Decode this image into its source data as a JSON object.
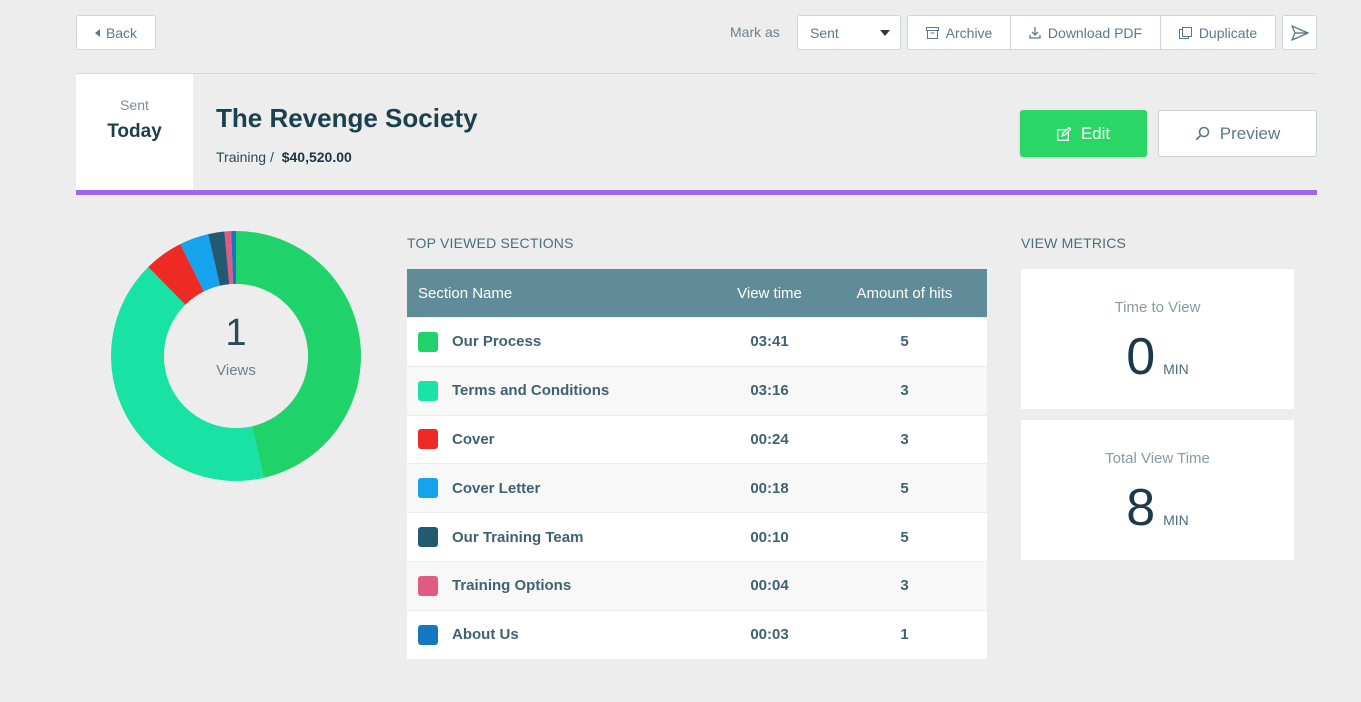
{
  "toolbar": {
    "back_label": "Back",
    "mark_as_label": "Mark as",
    "status_value": "Sent",
    "archive_label": "Archive",
    "download_label": "Download PDF",
    "duplicate_label": "Duplicate"
  },
  "header": {
    "sent_label": "Sent",
    "sent_value": "Today",
    "title": "The Revenge Society",
    "category": "Training /",
    "amount": "$40,520.00",
    "edit_label": "Edit",
    "preview_label": "Preview",
    "accent_color": "#a066ea"
  },
  "views": {
    "count": "1",
    "label": "Views"
  },
  "sections": {
    "title": "TOP VIEWED SECTIONS",
    "columns": [
      "Section Name",
      "View time",
      "Amount of hits"
    ],
    "rows": [
      {
        "name": "Our Process",
        "time": "03:41",
        "hits": "5",
        "color": "#1fd26a"
      },
      {
        "name": "Terms and Conditions",
        "time": "03:16",
        "hits": "3",
        "color": "#18e3a4"
      },
      {
        "name": "Cover",
        "time": "00:24",
        "hits": "3",
        "color": "#ee2a24"
      },
      {
        "name": "Cover Letter",
        "time": "00:18",
        "hits": "5",
        "color": "#14a3ec"
      },
      {
        "name": "Our Training Team",
        "time": "00:10",
        "hits": "5",
        "color": "#235a72"
      },
      {
        "name": "Training Options",
        "time": "00:04",
        "hits": "3",
        "color": "#e05a82"
      },
      {
        "name": "About Us",
        "time": "00:03",
        "hits": "1",
        "color": "#1478c0"
      }
    ]
  },
  "metrics": {
    "title": "VIEW METRICS",
    "time_to_view_label": "Time to View",
    "time_to_view_value": "0",
    "time_to_view_unit": "MIN",
    "total_view_label": "Total View Time",
    "total_view_value": "8",
    "total_view_unit": "MIN"
  },
  "chart_data": {
    "type": "pie",
    "categories": [
      "Our Process",
      "Terms and Conditions",
      "Cover",
      "Cover Letter",
      "Our Training Team",
      "Training Options",
      "About Us"
    ],
    "values": [
      221,
      196,
      24,
      18,
      10,
      4,
      3
    ],
    "colors": [
      "#1fd26a",
      "#18e3a4",
      "#ee2a24",
      "#14a3ec",
      "#235a72",
      "#e05a82",
      "#1478c0"
    ]
  }
}
